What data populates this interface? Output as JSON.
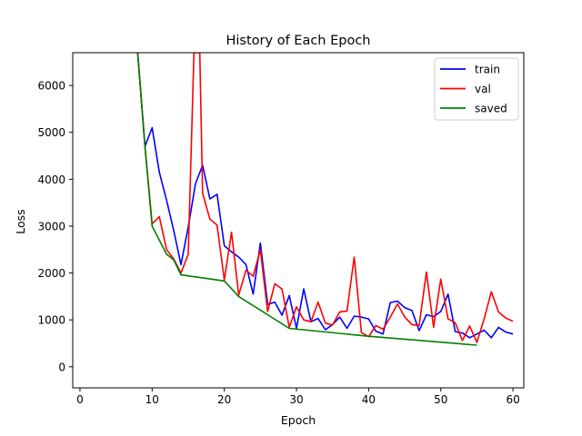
{
  "chart_data": {
    "type": "line",
    "title": "History of Each Epoch",
    "xlabel": "Epoch",
    "ylabel": "Loss",
    "xlim": [
      -1,
      61.5
    ],
    "ylim": [
      -450,
      6700
    ],
    "xticks": [
      0,
      10,
      20,
      30,
      40,
      50,
      60
    ],
    "yticks": [
      0,
      1000,
      2000,
      3000,
      4000,
      5000,
      6000
    ],
    "grid": false,
    "legend_position": "upper right",
    "series": [
      {
        "name": "train",
        "color": "#0000ff",
        "x": [
          8,
          9,
          10,
          11,
          12,
          13,
          14,
          15,
          16,
          17,
          18,
          19,
          20,
          21,
          22,
          23,
          24,
          25,
          26,
          27,
          28,
          29,
          30,
          31,
          32,
          33,
          34,
          35,
          36,
          37,
          38,
          39,
          40,
          41,
          42,
          43,
          44,
          45,
          46,
          47,
          48,
          49,
          50,
          51,
          52,
          53,
          54,
          55,
          56,
          57,
          58,
          59,
          60
        ],
        "values": [
          6700,
          4700,
          5100,
          4150,
          3550,
          2900,
          2180,
          2980,
          3900,
          4300,
          3580,
          3680,
          2580,
          2450,
          2340,
          2180,
          1550,
          2640,
          1330,
          1380,
          1100,
          1520,
          820,
          1660,
          960,
          1030,
          790,
          900,
          1060,
          820,
          1080,
          1060,
          1020,
          760,
          700,
          1370,
          1400,
          1260,
          1200,
          770,
          1110,
          1070,
          1180,
          1550,
          750,
          720,
          620,
          700,
          780,
          620,
          840,
          740,
          700
        ]
      },
      {
        "name": "val",
        "color": "#ff0000",
        "x": [
          8,
          9,
          10,
          11,
          12,
          13,
          14,
          15,
          15.8,
          16.6,
          17,
          18,
          19,
          20,
          21,
          22,
          23,
          24,
          25,
          26,
          27,
          28,
          29,
          30,
          31,
          32,
          33,
          34,
          35,
          36,
          37,
          38,
          39,
          40,
          41,
          42,
          43,
          44,
          45,
          46,
          47,
          48,
          49,
          50,
          51,
          52,
          53,
          54,
          55,
          56,
          57,
          58,
          59,
          60
        ],
        "values": [
          6700,
          4700,
          3050,
          3200,
          2500,
          2300,
          2000,
          2400,
          6700,
          6700,
          3700,
          3150,
          3020,
          1850,
          2870,
          1530,
          2060,
          1930,
          2500,
          1180,
          1770,
          1660,
          840,
          1280,
          1000,
          960,
          1380,
          930,
          890,
          1170,
          1190,
          2340,
          730,
          640,
          880,
          800,
          1060,
          1340,
          1060,
          900,
          880,
          2020,
          840,
          1870,
          1020,
          940,
          560,
          870,
          520,
          1020,
          1600,
          1170,
          1040,
          970
        ]
      },
      {
        "name": "saved",
        "color": "#008000",
        "x": [
          8,
          9,
          10,
          12,
          13,
          14,
          20,
          22,
          29,
          40,
          55
        ],
        "values": [
          6700,
          4700,
          3000,
          2400,
          2280,
          1960,
          1830,
          1500,
          820,
          650,
          460
        ]
      }
    ]
  }
}
